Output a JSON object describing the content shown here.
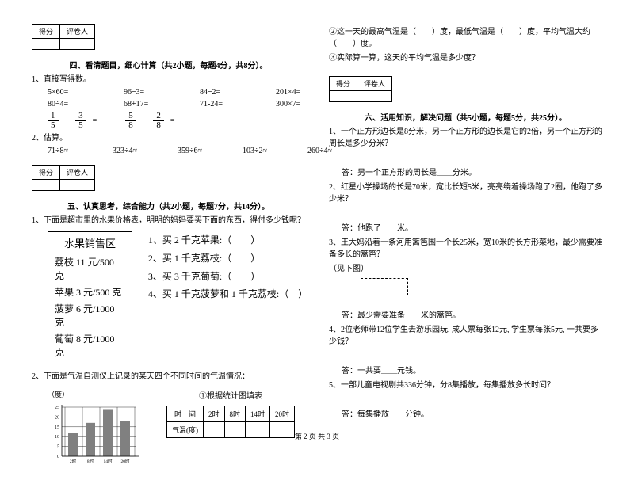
{
  "score_labels": {
    "score": "得分",
    "marker": "评卷人"
  },
  "sec4": {
    "title": "四、看清题目，细心计算（共2小题，每题4分，共8分）。",
    "q1": "1、直接写得数。",
    "r1": [
      "5×60=",
      "96÷3=",
      "84÷2=",
      "201×4="
    ],
    "r2": [
      "80÷4=",
      "68+17=",
      "71-24=",
      "300×7="
    ],
    "frac": {
      "a_n": "1",
      "a_d": "5",
      "b_n": "3",
      "b_d": "5",
      "c_n": "5",
      "c_d": "8",
      "d_n": "2",
      "d_d": "8",
      "op1": "+",
      "op2": "−",
      "eq": "="
    },
    "q2": "2、估算。",
    "r3": [
      "71÷8≈",
      "323÷4≈",
      "359÷6≈",
      "103÷2≈",
      "260÷4≈"
    ]
  },
  "sec5": {
    "title": "五、认真思考，综合能力（共2小题，每题7分，共14分）。",
    "q1": "1、下面是超市里的水果价格表，明明的妈妈要买下面的东西，得付多少钱呢？",
    "fruit_title": "水果销售区",
    "fruits": [
      "荔枝 11 元/500 克",
      "苹果 3 元/500 克",
      "菠萝 6 元/1000 克",
      "葡萄 8 元/1000 克"
    ],
    "buys": [
      "1、买 2 千克苹果:（　　）",
      "2、买 1 千克荔枝:（　　）",
      "3、买 3 千克葡萄:（　　）",
      "4、买 1 千克菠萝和 1 千克荔枝:（　）"
    ],
    "q2": "2、下面是气温自测仪上记录的某天四个不同时间的气温情况：",
    "ylabel": "（度）",
    "stat_title": "①根据统计图填表",
    "th": [
      "时　间",
      "2时",
      "8时",
      "14时",
      "20时"
    ],
    "tr": "气温(度)",
    "yticks": [
      "25",
      "20",
      "15",
      "10",
      "5",
      "0"
    ],
    "xticks": [
      "2时",
      "8时",
      "14时",
      "20时"
    ],
    "bars": [
      12,
      17,
      24,
      18
    ],
    "bar_color": "#808080",
    "grid_color": "#000"
  },
  "right": {
    "q2b": "②这一天的最高气温是（　　）度，最低气温是（　　）度，平均气温大约（　　）度。",
    "q2c": "③实际算一算，这天的平均气温是多少度？"
  },
  "sec6": {
    "title": "六、活用知识，解决问题（共5小题，每题5分，共25分）。",
    "q1": "1、一个正方形边长是8分米，另一个正方形的边长是它的2倍，另一个正方形的周长是多少分米？",
    "a1": "答：另一个正方形的周长是＿＿分米。",
    "q2": "2、红星小学操场的长是70米，宽比长短5米，亮亮绕着操场跑了2圈，他跑了多少米？",
    "a2": "答：他跑了＿＿米。",
    "q3a": "3、王大妈沿着一条河用篱笆围一个长25米，宽10米的长方形菜地，最少需要准备多长的篱笆？",
    "q3b": "（见下图）",
    "a3": "答：最少需要准备＿＿米的篱笆。",
    "q4": "4、2位老师带12位学生去游乐园玩, 成人票每张12元, 学生票每张5元, 一共要多少钱？",
    "a4": "答：一共要＿＿元钱。",
    "q5": "5、一部儿童电视剧共336分钟，分8集播放，每集播放多长时间？",
    "a5": "答：每集播放＿＿分钟。"
  },
  "footer": "第 2 页 共 3 页"
}
